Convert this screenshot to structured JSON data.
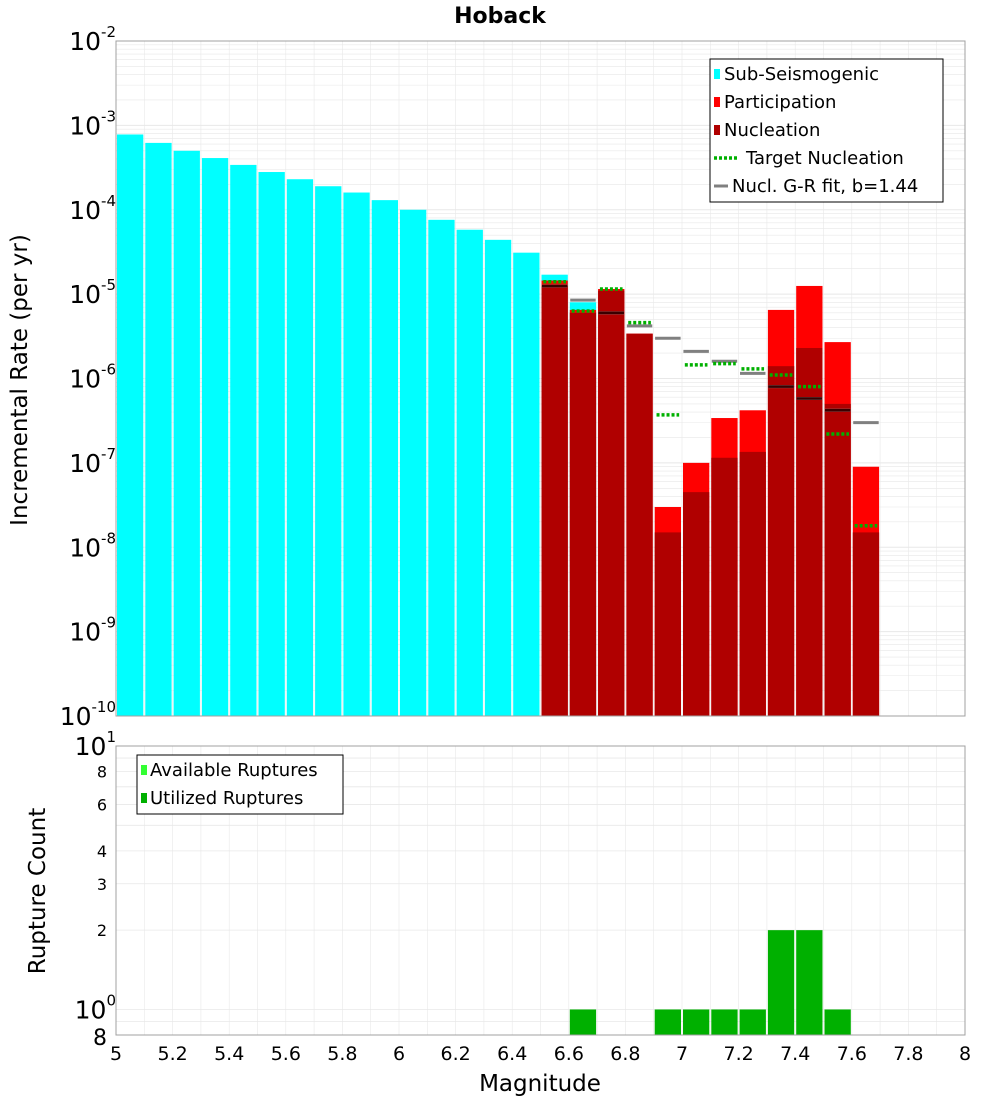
{
  "title": "Hoback",
  "colors": {
    "sub_seismogenic": "#00ffff",
    "participation": "#ff0000",
    "nucleation": "#b00000",
    "target_nucleation": "#00b000",
    "gr_fit": "#808080",
    "available": "#33ff33",
    "utilized": "#00b000",
    "grid": "#e8e8e8",
    "plot_border": "#a0a0a0"
  },
  "chart_data": [
    {
      "type": "bar",
      "scale": "log",
      "ylabel": "Incremental Rate (per yr)",
      "xlim": [
        5,
        8
      ],
      "ylim": [
        1e-10,
        0.01
      ],
      "bin_width": 0.1,
      "y_ticks": [
        {
          "base": "10",
          "exp": "-2",
          "value": 0.01
        },
        {
          "base": "10",
          "exp": "-3",
          "value": 0.001
        },
        {
          "base": "10",
          "exp": "-4",
          "value": 0.0001
        },
        {
          "base": "10",
          "exp": "-5",
          "value": 1e-05
        },
        {
          "base": "10",
          "exp": "-6",
          "value": 1e-06
        },
        {
          "base": "10",
          "exp": "-7",
          "value": 1e-07
        },
        {
          "base": "10",
          "exp": "-8",
          "value": 1e-08
        },
        {
          "base": "10",
          "exp": "-9",
          "value": 1e-09
        },
        {
          "base": "10",
          "exp": "-10",
          "value": 1e-10
        }
      ],
      "legend": {
        "position": "top-right",
        "entries": [
          {
            "label": "Sub-Seismogenic",
            "symbol": "bar",
            "color_key": "sub_seismogenic"
          },
          {
            "label": "Participation",
            "symbol": "bar",
            "color_key": "participation"
          },
          {
            "label": "Nucleation",
            "symbol": "bar",
            "color_key": "nucleation"
          },
          {
            "label": "Target Nucleation",
            "symbol": "dotted",
            "color_key": "target_nucleation"
          },
          {
            "label": "Nucl. G-R fit, b=1.44",
            "symbol": "line",
            "color_key": "gr_fit"
          }
        ]
      },
      "series": [
        {
          "name": "Sub-Seismogenic",
          "x": [
            5.05,
            5.15,
            5.25,
            5.35,
            5.45,
            5.55,
            5.65,
            5.75,
            5.85,
            5.95,
            6.05,
            6.15,
            6.25,
            6.35,
            6.45,
            6.55,
            6.65
          ],
          "values": [
            0.00078,
            0.00062,
            0.0005,
            0.00041,
            0.00034,
            0.00028,
            0.00023,
            0.00019,
            0.00016,
            0.00013,
            0.0001,
            7.6e-05,
            5.8e-05,
            4.4e-05,
            3.1e-05,
            1.7e-05,
            8e-06
          ]
        },
        {
          "name": "Participation",
          "x": [
            6.55,
            6.65,
            6.75,
            6.85,
            6.95,
            7.05,
            7.15,
            7.25,
            7.35,
            7.45,
            7.55,
            7.65
          ],
          "values": [
            1.45e-05,
            6.5e-06,
            1.15e-05,
            3.4e-06,
            3e-08,
            1e-07,
            3.4e-07,
            4.2e-07,
            6.5e-06,
            1.25e-05,
            2.7e-06,
            9e-08
          ]
        },
        {
          "name": "Nucleation",
          "x": [
            6.55,
            6.65,
            6.75,
            6.85,
            6.95,
            7.05,
            7.15,
            7.25,
            7.35,
            7.45,
            7.55,
            7.65
          ],
          "values": [
            1.25e-05,
            6e-06,
            1.1e-05,
            3.4e-06,
            1.5e-08,
            4.5e-08,
            1.15e-07,
            1.35e-07,
            1.4e-06,
            2.3e-06,
            5e-07,
            1.5e-08
          ]
        },
        {
          "name": "Target Nucleation",
          "x": [
            6.55,
            6.65,
            6.75,
            6.85,
            6.95,
            7.05,
            7.15,
            7.25,
            7.35,
            7.45,
            7.55,
            7.65
          ],
          "values": [
            1.4e-05,
            6.3e-06,
            1.15e-05,
            4.6e-06,
            3.7e-07,
            1.45e-06,
            1.5e-06,
            1.3e-06,
            1.1e-06,
            8e-07,
            2.2e-07,
            1.8e-08
          ]
        },
        {
          "name": "Nucl. G-R fit, b=1.44",
          "x": [
            6.55,
            6.65,
            6.75,
            6.85,
            6.95,
            7.05,
            7.15,
            7.25,
            7.35,
            7.45,
            7.55,
            7.65
          ],
          "values": [
            1.25e-05,
            8.5e-06,
            6e-06,
            4.2e-06,
            3e-06,
            2.1e-06,
            1.6e-06,
            1.15e-06,
            8e-07,
            5.8e-07,
            4.2e-07,
            3e-07
          ]
        }
      ]
    },
    {
      "type": "bar",
      "scale": "log",
      "ylabel": "Rupture Count",
      "xlabel": "Magnitude",
      "xlim": [
        5,
        8
      ],
      "ylim": [
        0.8,
        10
      ],
      "bin_width": 0.1,
      "x_ticks": [
        "5",
        "5.2",
        "5.4",
        "5.6",
        "5.8",
        "6",
        "6.2",
        "6.4",
        "6.6",
        "6.8",
        "7",
        "7.2",
        "7.4",
        "7.6",
        "7.8",
        "8"
      ],
      "y_ticks": [
        {
          "label": "8",
          "value": 8
        },
        {
          "label": "6",
          "value": 6
        },
        {
          "label": "4",
          "value": 4
        },
        {
          "label": "3",
          "value": 3
        },
        {
          "label": "2",
          "value": 2
        }
      ],
      "y_ticks_sci": [
        {
          "base": "10",
          "exp": "1",
          "value": 10
        },
        {
          "base": "10",
          "exp": "0",
          "value": 1
        }
      ],
      "y_tick_bottom": {
        "label": "8",
        "value": 0.8
      },
      "legend": {
        "position": "top-left",
        "entries": [
          {
            "label": "Available Ruptures",
            "symbol": "bar",
            "color_key": "available"
          },
          {
            "label": "Utilized Ruptures",
            "symbol": "bar",
            "color_key": "utilized"
          }
        ]
      },
      "series": [
        {
          "name": "Utilized Ruptures",
          "x": [
            6.65,
            6.95,
            7.05,
            7.15,
            7.25,
            7.35,
            7.45,
            7.55
          ],
          "values": [
            1,
            1,
            1,
            1,
            1,
            2,
            2,
            1
          ]
        }
      ]
    }
  ]
}
